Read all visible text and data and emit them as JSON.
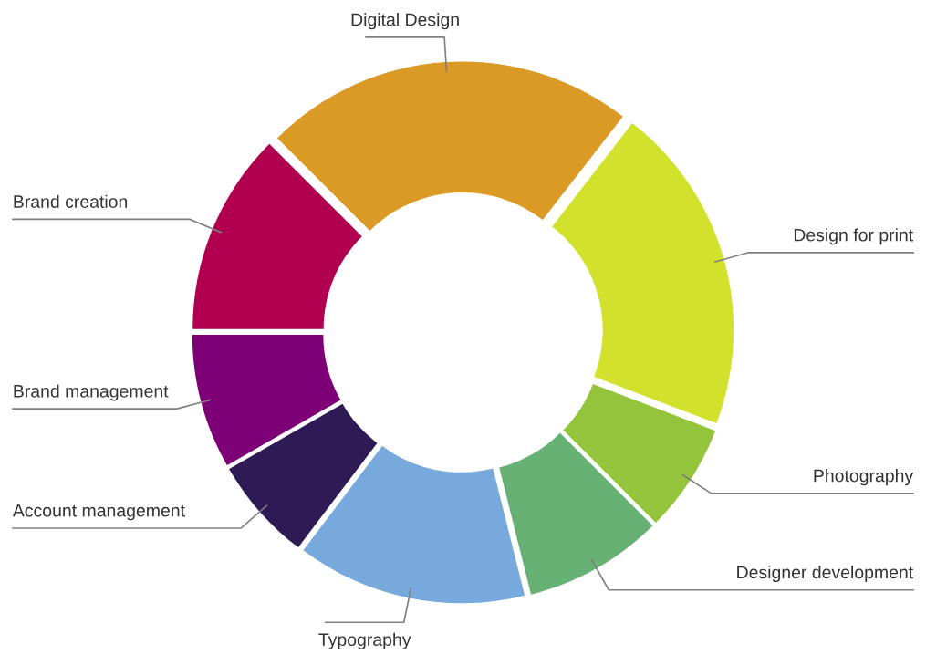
{
  "chart_data": {
    "type": "donut",
    "categories": [
      "Digital Design",
      "Design for print",
      "Photography",
      "Designer development",
      "Typography",
      "Account management",
      "Brand management",
      "Brand creation"
    ],
    "values": [
      23,
      20.3,
      6.7,
      8.6,
      14.2,
      6.4,
      8.3,
      12.5
    ],
    "colors": [
      "#da9a25",
      "#d2e12c",
      "#94c43b",
      "#66b173",
      "#78a9dd",
      "#2e1a54",
      "#7e0077",
      "#b0004f"
    ]
  }
}
